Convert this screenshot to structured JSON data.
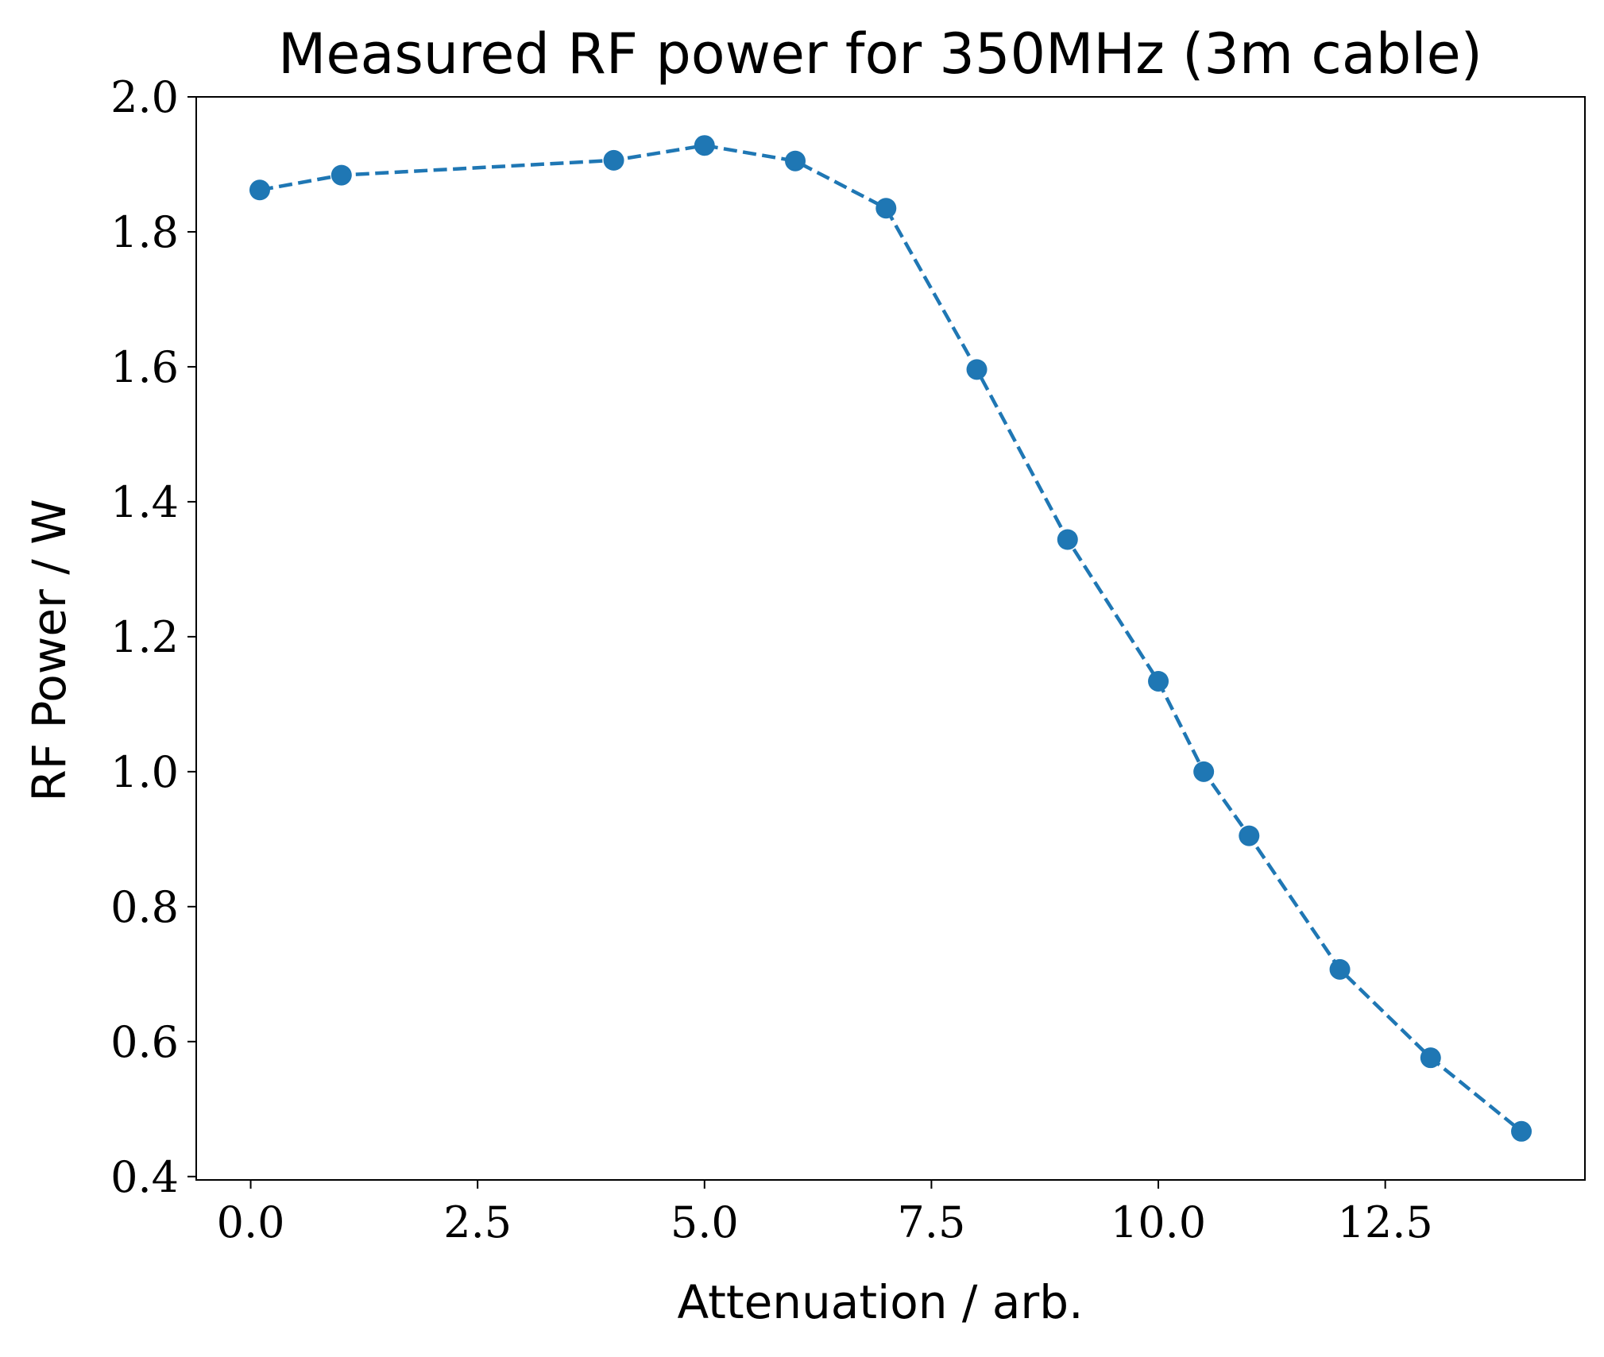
{
  "colors": {
    "series": "#1f77b4",
    "axes": "#000000",
    "background": "#ffffff"
  },
  "chart_data": {
    "type": "line",
    "title": "Measured RF power for 350MHz (3m cable)",
    "xlabel": "Attenuation / arb.",
    "ylabel": "RF Power / W",
    "xlim": [
      -0.6,
      14.7
    ],
    "ylim": [
      0.395,
      2.0
    ],
    "xticks": [
      0.0,
      2.5,
      5.0,
      7.5,
      10.0,
      12.5
    ],
    "xtick_labels": [
      "0.0",
      "2.5",
      "5.0",
      "7.5",
      "10.0",
      "12.5"
    ],
    "yticks": [
      0.4,
      0.6,
      0.8,
      1.0,
      1.2,
      1.4,
      1.6,
      1.8,
      2.0
    ],
    "ytick_labels": [
      "0.4",
      "0.6",
      "0.8",
      "1.0",
      "1.2",
      "1.4",
      "1.6",
      "1.8",
      "2.0"
    ],
    "grid": false,
    "series": [
      {
        "line_style": "dashed",
        "marker": "circle",
        "color": "#1f77b4",
        "x": [
          0.1,
          1.0,
          4.0,
          5.0,
          6.0,
          7.0,
          8.0,
          9.0,
          10.0,
          10.5,
          11.0,
          12.0,
          13.0,
          14.0
        ],
        "y": [
          1.862,
          1.884,
          1.906,
          1.928,
          1.905,
          1.835,
          1.596,
          1.344,
          1.134,
          1.0,
          0.905,
          0.707,
          0.576,
          0.467
        ]
      }
    ]
  }
}
